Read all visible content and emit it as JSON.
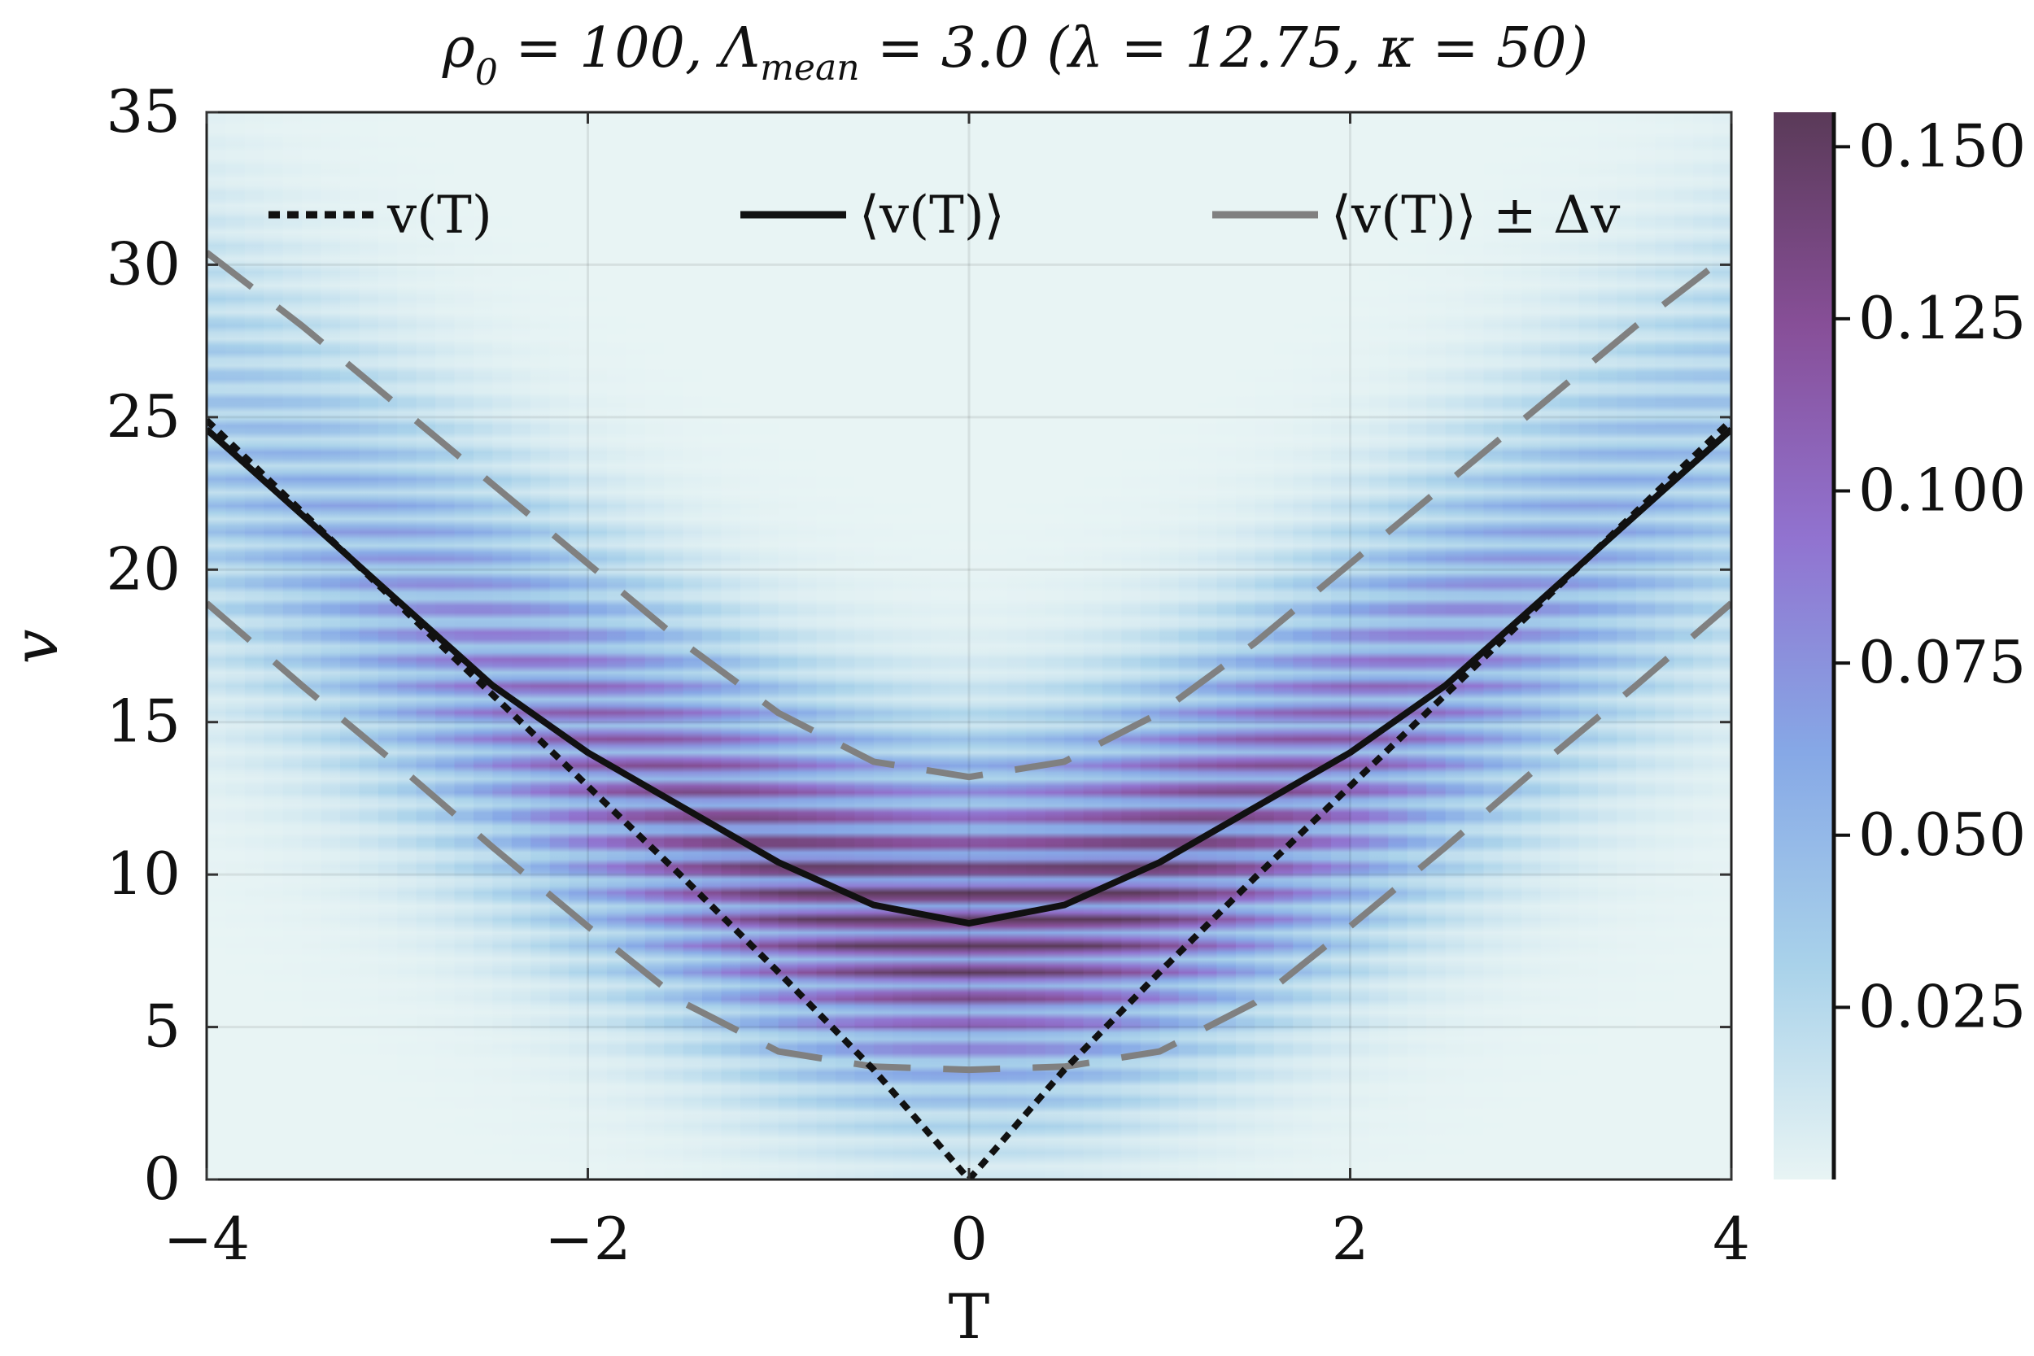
{
  "chart_data": {
    "type": "heatmap",
    "title": {
      "rho": "ρ",
      "rho_sub": "0",
      "part1": " = 100,  Λ",
      "lambda_sub": "mean",
      "part2": " = 3.0 (λ = 12.75, κ = 50)"
    },
    "xlabel": "T",
    "ylabel": "v",
    "xlim": [
      -4,
      4
    ],
    "ylim": [
      0,
      35
    ],
    "xticks": [
      -4,
      -2,
      0,
      2,
      4
    ],
    "xtick_labels": [
      "−4",
      "−2",
      "0",
      "2",
      "4"
    ],
    "yticks": [
      0,
      5,
      10,
      15,
      20,
      25,
      30,
      35
    ],
    "ytick_labels": [
      "0",
      "5",
      "10",
      "15",
      "20",
      "25",
      "30",
      "35"
    ],
    "grid": true,
    "legend_position": "top",
    "legend": [
      {
        "label": "v(T)",
        "style": "dotted",
        "color": "#111111"
      },
      {
        "label": "⟨v(T)⟩",
        "style": "solid",
        "color": "#111111"
      },
      {
        "label": "⟨v(T)⟩ ± Δv",
        "style": "dashed",
        "color": "#808080"
      }
    ],
    "series": [
      {
        "name": "v(T)",
        "T": [
          -4,
          -3.5,
          -3,
          -2.5,
          -2,
          -1.5,
          -1,
          -0.5,
          -0.25,
          0,
          0.25,
          0.5,
          1,
          1.5,
          2,
          2.5,
          3,
          3.5,
          4
        ],
        "v": [
          24.9,
          21.9,
          18.9,
          15.9,
          12.9,
          9.9,
          6.8,
          3.6,
          1.8,
          0.0,
          1.8,
          3.6,
          6.8,
          9.9,
          12.9,
          15.9,
          18.9,
          21.9,
          24.9
        ]
      },
      {
        "name": "⟨v(T)⟩",
        "T": [
          -4,
          -3.5,
          -3,
          -2.5,
          -2,
          -1.5,
          -1,
          -0.5,
          0,
          0.5,
          1,
          1.5,
          2,
          2.5,
          3,
          3.5,
          4
        ],
        "v": [
          24.6,
          21.8,
          19.0,
          16.2,
          14.0,
          12.2,
          10.4,
          9.0,
          8.4,
          9.0,
          10.4,
          12.2,
          14.0,
          16.2,
          19.0,
          21.8,
          24.6
        ]
      },
      {
        "name": "⟨v(T)⟩ + Δv",
        "T": [
          -4,
          -3.5,
          -3,
          -2.5,
          -2,
          -1.5,
          -1,
          -0.5,
          0,
          0.5,
          1,
          1.5,
          2,
          2.5,
          3,
          3.5,
          4
        ],
        "v": [
          30.4,
          28.0,
          25.4,
          22.8,
          20.2,
          17.6,
          15.3,
          13.7,
          13.2,
          13.7,
          15.3,
          17.6,
          20.2,
          22.8,
          25.4,
          28.0,
          30.4
        ]
      },
      {
        "name": "⟨v(T)⟩ − Δv",
        "T": [
          -4,
          -3.5,
          -3,
          -2.5,
          -2,
          -1.5,
          -1,
          -0.5,
          0,
          0.5,
          1,
          1.5,
          2,
          2.5,
          3,
          3.5,
          4
        ],
        "v": [
          18.9,
          16.2,
          13.6,
          10.9,
          8.3,
          5.8,
          4.2,
          3.7,
          3.6,
          3.7,
          4.2,
          5.8,
          8.3,
          10.9,
          13.6,
          16.2,
          18.9
        ]
      }
    ],
    "colorbar": {
      "range": [
        0,
        0.155
      ],
      "ticks": [
        0.025,
        0.05,
        0.075,
        0.1,
        0.125,
        0.15
      ],
      "tick_labels": [
        "0.025",
        "0.050",
        "0.075",
        "0.100",
        "0.125",
        "0.150"
      ],
      "colors": [
        "#e8f4f4",
        "#a9d2ea",
        "#86a8e6",
        "#9173d0",
        "#874f98",
        "#5a3a58"
      ]
    }
  }
}
